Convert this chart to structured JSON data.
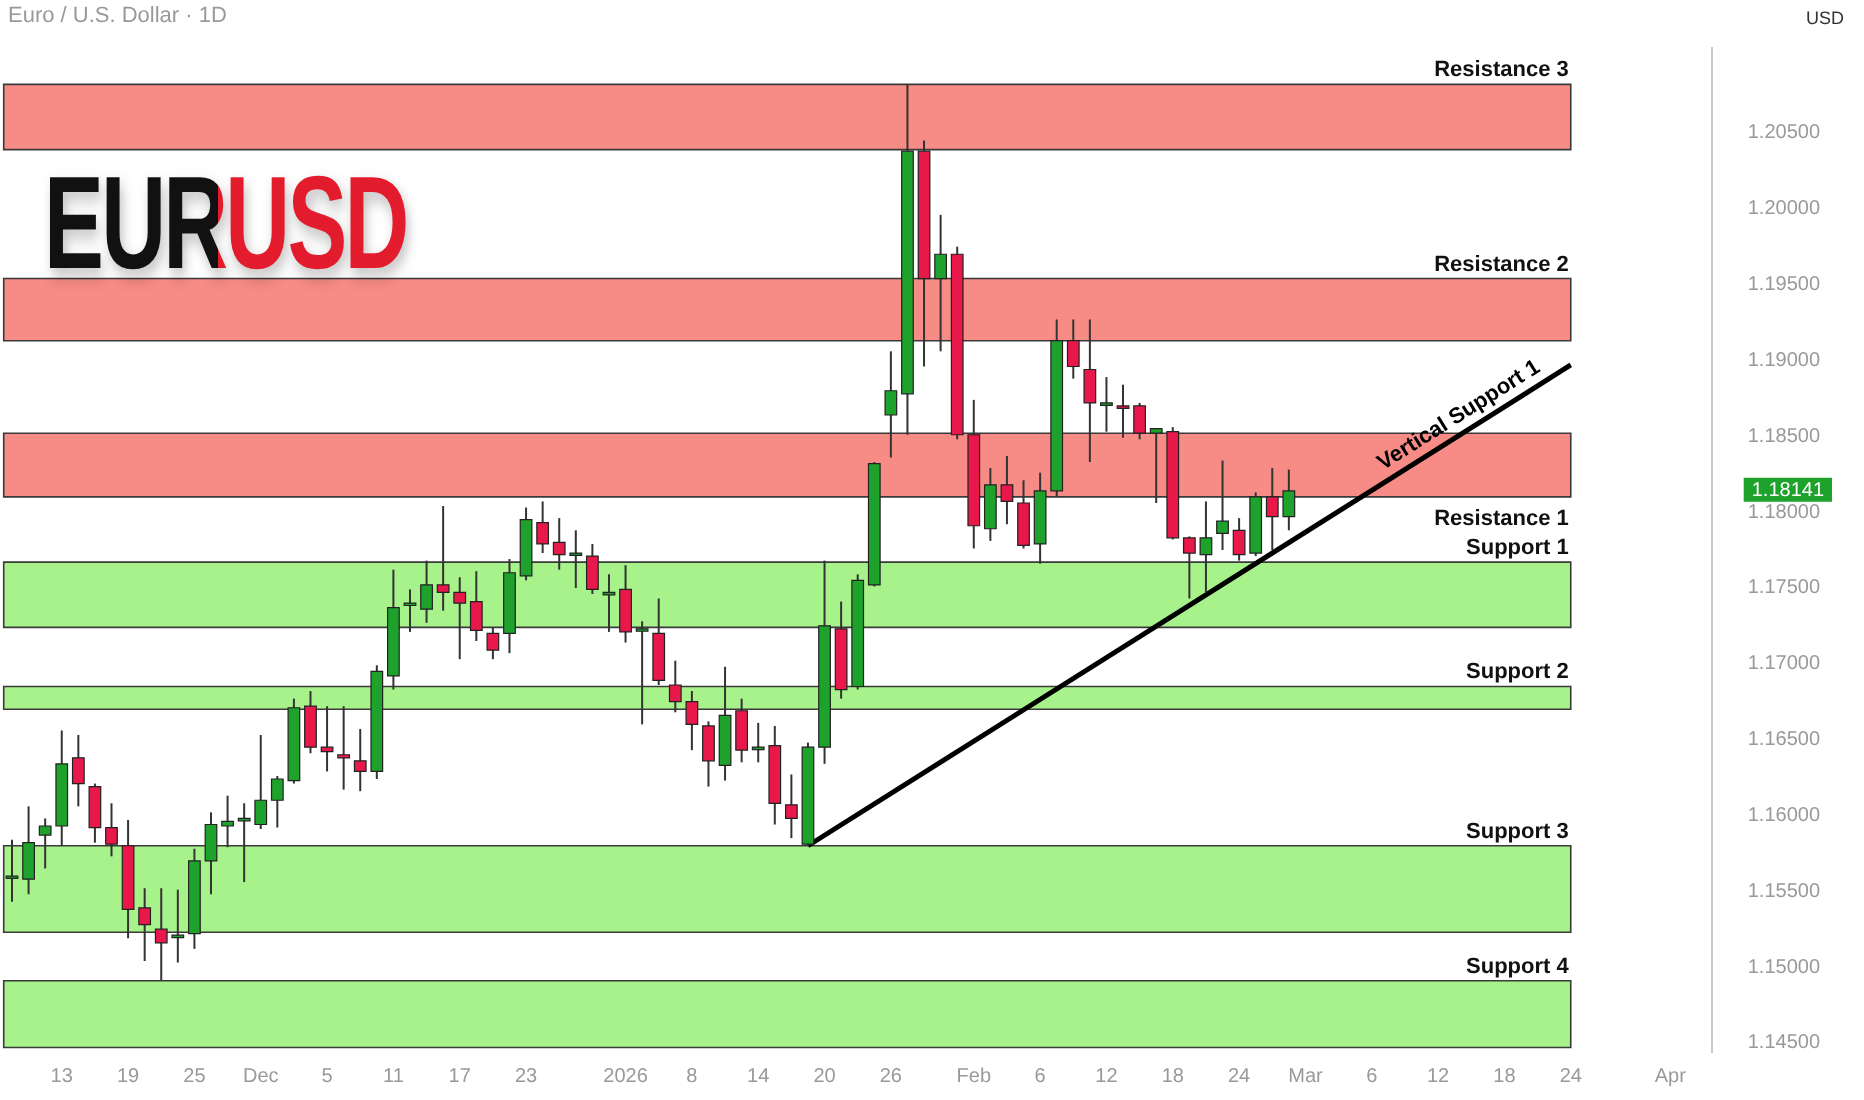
{
  "chart_data": {
    "type": "candlestick",
    "title": "EURUSD",
    "subtitle": "Euro / U.S. Dollar · 1D",
    "ylabel": "USD",
    "categories": [
      null,
      null,
      null,
      "13",
      null,
      null,
      null,
      "19",
      null,
      null,
      null,
      "25",
      null,
      null,
      null,
      "Dec",
      null,
      null,
      null,
      "5",
      null,
      null,
      null,
      "11",
      null,
      null,
      null,
      "17",
      null,
      null,
      null,
      "23",
      null,
      null,
      null,
      null,
      null,
      "2026",
      null,
      null,
      null,
      "8",
      null,
      null,
      null,
      "14",
      null,
      null,
      null,
      "20",
      null,
      null,
      null,
      "26",
      null,
      null,
      null,
      null,
      "Feb",
      null,
      null,
      null,
      "6",
      null,
      null,
      null,
      "12",
      null,
      null,
      null,
      "18",
      null,
      null,
      null,
      "24",
      null,
      null,
      null,
      "Mar",
      null,
      null,
      null,
      "6",
      null,
      null,
      null,
      "12",
      null,
      null,
      null,
      "18",
      null,
      null,
      null,
      "24",
      null,
      null,
      null,
      null,
      null,
      "Apr",
      null,
      null
    ],
    "ohlc": [
      [
        1.1559,
        1.1584,
        1.1543,
        1.156
      ],
      [
        1.1558,
        1.1606,
        1.1548,
        1.1582
      ],
      [
        1.1587,
        1.1598,
        1.1565,
        1.1593
      ],
      [
        1.1593,
        1.1656,
        1.158,
        1.1634
      ],
      [
        1.1638,
        1.1653,
        1.1606,
        1.1621
      ],
      [
        1.1619,
        1.1621,
        1.1582,
        1.1592
      ],
      [
        1.1592,
        1.1608,
        1.1573,
        1.1581
      ],
      [
        1.158,
        1.1597,
        1.1519,
        1.1538
      ],
      [
        1.1539,
        1.1552,
        1.1504,
        1.1528
      ],
      [
        1.1525,
        1.1552,
        1.1491,
        1.1516
      ],
      [
        1.152,
        1.1551,
        1.1503,
        1.1521
      ],
      [
        1.1522,
        1.1578,
        1.1512,
        1.157
      ],
      [
        1.157,
        1.1602,
        1.1548,
        1.1594
      ],
      [
        1.1593,
        1.1613,
        1.1579,
        1.1596
      ],
      [
        1.1597,
        1.1608,
        1.1556,
        1.1598
      ],
      [
        1.1594,
        1.1653,
        1.1591,
        1.161
      ],
      [
        1.161,
        1.1626,
        1.1592,
        1.1624
      ],
      [
        1.1623,
        1.1677,
        1.1621,
        1.1671
      ],
      [
        1.1672,
        1.1682,
        1.1641,
        1.1645
      ],
      [
        1.1645,
        1.1672,
        1.1629,
        1.1642
      ],
      [
        1.164,
        1.1672,
        1.1617,
        1.1638
      ],
      [
        1.1636,
        1.1657,
        1.1616,
        1.1629
      ],
      [
        1.1629,
        1.1699,
        1.1624,
        1.1695
      ],
      [
        1.1692,
        1.1762,
        1.1683,
        1.1737
      ],
      [
        1.1739,
        1.1749,
        1.1721,
        1.174
      ],
      [
        1.1736,
        1.1768,
        1.1727,
        1.1752
      ],
      [
        1.1752,
        1.1804,
        1.1735,
        1.1747
      ],
      [
        1.1747,
        1.1757,
        1.1703,
        1.174
      ],
      [
        1.1741,
        1.1761,
        1.1715,
        1.1722
      ],
      [
        1.172,
        1.1724,
        1.1703,
        1.1709
      ],
      [
        1.172,
        1.1769,
        1.1707,
        1.176
      ],
      [
        1.1758,
        1.1803,
        1.1755,
        1.1795
      ],
      [
        1.1793,
        1.1807,
        1.1773,
        1.1779
      ],
      [
        1.178,
        1.1796,
        1.1762,
        1.1772
      ],
      [
        1.1772,
        1.1788,
        1.175,
        1.1773
      ],
      [
        1.1771,
        1.1779,
        1.1746,
        1.1749
      ],
      [
        1.1746,
        1.1759,
        1.1721,
        1.1747
      ],
      [
        1.1749,
        1.1765,
        1.1714,
        1.1721
      ],
      [
        1.1722,
        1.1728,
        1.166,
        1.1723
      ],
      [
        1.172,
        1.1743,
        1.1686,
        1.1689
      ],
      [
        1.1686,
        1.1702,
        1.1668,
        1.1675
      ],
      [
        1.1675,
        1.1682,
        1.1643,
        1.166
      ],
      [
        1.1659,
        1.1662,
        1.1619,
        1.1636
      ],
      [
        1.1633,
        1.1698,
        1.1623,
        1.1666
      ],
      [
        1.1669,
        1.1677,
        1.1635,
        1.1643
      ],
      [
        1.1644,
        1.1661,
        1.1635,
        1.1645
      ],
      [
        1.1646,
        1.1659,
        1.1594,
        1.1608
      ],
      [
        1.1607,
        1.1627,
        1.1585,
        1.1598
      ],
      [
        1.1581,
        1.1648,
        1.158,
        1.1645
      ],
      [
        1.1645,
        1.1768,
        1.1634,
        1.1725
      ],
      [
        1.1723,
        1.1741,
        1.1677,
        1.1683
      ],
      [
        1.1685,
        1.1759,
        1.1683,
        1.1755
      ],
      [
        1.1752,
        1.1833,
        1.1751,
        1.1832
      ],
      [
        1.1864,
        1.1906,
        1.1836,
        1.188
      ],
      [
        1.1878,
        1.2082,
        1.1851,
        1.2038
      ],
      [
        1.2038,
        1.2045,
        1.1896,
        1.1954
      ],
      [
        1.1954,
        1.1996,
        1.1906,
        1.197
      ],
      [
        1.197,
        1.1975,
        1.1848,
        1.1851
      ],
      [
        1.1851,
        1.1874,
        1.1776,
        1.1791
      ],
      [
        1.1789,
        1.1829,
        1.1781,
        1.1818
      ],
      [
        1.1818,
        1.1837,
        1.1792,
        1.1807
      ],
      [
        1.1806,
        1.1821,
        1.1776,
        1.1778
      ],
      [
        1.1779,
        1.1826,
        1.1766,
        1.1814
      ],
      [
        1.1814,
        1.1927,
        1.181,
        1.1913
      ],
      [
        1.1913,
        1.1927,
        1.1888,
        1.1896
      ],
      [
        1.1894,
        1.1927,
        1.1833,
        1.1872
      ],
      [
        1.1871,
        1.1889,
        1.1853,
        1.1872
      ],
      [
        1.187,
        1.1884,
        1.1849,
        1.1869
      ],
      [
        1.187,
        1.1872,
        1.1848,
        1.1852
      ],
      [
        1.1852,
        1.1855,
        1.1806,
        1.1855
      ],
      [
        1.1853,
        1.1856,
        1.1782,
        1.1783
      ],
      [
        1.1783,
        1.1784,
        1.1743,
        1.1773
      ],
      [
        1.1772,
        1.1807,
        1.1747,
        1.1783
      ],
      [
        1.1786,
        1.1834,
        1.1775,
        1.1794
      ],
      [
        1.1788,
        1.1796,
        1.1768,
        1.1772
      ],
      [
        1.1773,
        1.1813,
        1.1771,
        1.181
      ],
      [
        1.181,
        1.1829,
        1.1775,
        1.1797
      ],
      [
        1.1797,
        1.1828,
        1.1788,
        1.1814
      ],
      null,
      null,
      null,
      null,
      null,
      null,
      null,
      null,
      null,
      null,
      null,
      null,
      null,
      null,
      null,
      null,
      null,
      null,
      null,
      null,
      null,
      null,
      null,
      null,
      null
    ],
    "series": [
      {
        "type": "line",
        "name": "Vertical Support 1",
        "color": "#000000",
        "values": [
          null,
          null,
          null,
          null,
          null,
          null,
          null,
          null,
          null,
          null,
          null,
          null,
          null,
          null,
          null,
          null,
          null,
          null,
          null,
          null,
          null,
          null,
          null,
          null,
          null,
          null,
          null,
          null,
          null,
          null,
          null,
          null,
          null,
          null,
          null,
          null,
          null,
          null,
          null,
          null,
          null,
          null,
          null,
          null,
          null,
          null,
          null,
          null,
          1.158,
          null,
          null,
          null,
          null,
          null,
          null,
          null,
          null,
          null,
          null,
          null,
          null,
          null,
          null,
          null,
          null,
          null,
          null,
          null,
          null,
          null,
          null,
          null,
          null,
          null,
          null,
          null,
          null,
          null,
          null,
          null,
          null,
          null,
          null,
          null,
          null,
          null,
          null,
          null,
          null,
          null,
          null,
          null,
          null,
          null,
          1.1897,
          null,
          null,
          null,
          null,
          null,
          null,
          null,
          null
        ]
      }
    ],
    "bands": [
      {
        "axis": "y",
        "from": 1.2039,
        "to": 1.2082,
        "label": "Resistance 3",
        "color": "#f78b85"
      },
      {
        "axis": "y",
        "from": 1.1913,
        "to": 1.1954,
        "label": "Resistance 2",
        "color": "#f78b85"
      },
      {
        "axis": "y",
        "from": 1.181,
        "to": 1.1852,
        "label": "Resistance 1",
        "color": "#f78b85"
      },
      {
        "axis": "y",
        "from": 1.1724,
        "to": 1.1767,
        "label": "Support 1",
        "color": "#a8f28c"
      },
      {
        "axis": "y",
        "from": 1.167,
        "to": 1.1685,
        "label": "Support 2",
        "color": "#a8f28c"
      },
      {
        "axis": "y",
        "from": 1.1523,
        "to": 1.158,
        "label": "Support 3",
        "color": "#a8f28c"
      },
      {
        "axis": "y",
        "from": 1.1447,
        "to": 1.1491,
        "label": "Support 4",
        "color": "#a8f28c"
      }
    ],
    "annotations": [
      "1.18141"
    ],
    "ylim": [
      1.1444,
      1.2106
    ],
    "yticks": [
      {
        "value": 1.145,
        "label": "1.14500"
      },
      {
        "value": 1.15,
        "label": "1.15000"
      },
      {
        "value": 1.155,
        "label": "1.15500"
      },
      {
        "value": 1.16,
        "label": "1.16000"
      },
      {
        "value": 1.165,
        "label": "1.16500"
      },
      {
        "value": 1.17,
        "label": "1.17000"
      },
      {
        "value": 1.175,
        "label": "1.17500"
      },
      {
        "value": 1.18,
        "label": "1.18000"
      },
      {
        "value": 1.185,
        "label": "1.18500"
      },
      {
        "value": 1.19,
        "label": "1.19000"
      },
      {
        "value": 1.195,
        "label": "1.19500"
      },
      {
        "value": 1.2,
        "label": "1.20000"
      },
      {
        "value": 1.205,
        "label": "1.20500"
      }
    ],
    "grid": false,
    "legend": false
  }
}
